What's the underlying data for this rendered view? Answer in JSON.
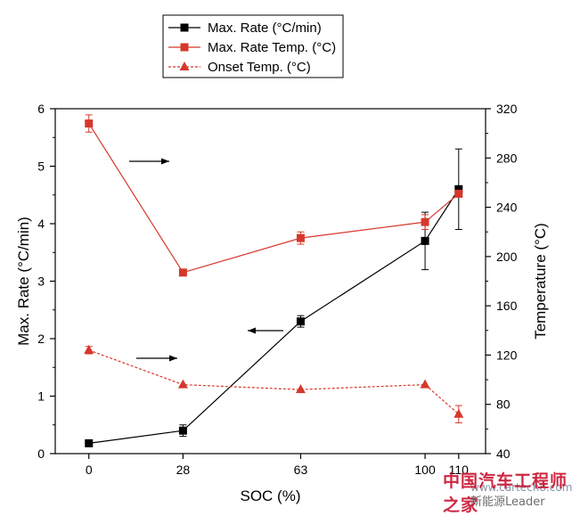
{
  "chart_data": {
    "type": "line",
    "x": [
      0,
      28,
      63,
      100,
      110
    ],
    "x_tick_labels": [
      "0",
      "28",
      "63",
      "100",
      "110"
    ],
    "xlabel": "SOC (%)",
    "ylabel_left": "Max. Rate (°C/min)",
    "ylabel_right": "Temperature (°C)",
    "ylim_left": [
      0,
      6
    ],
    "yticks_left": [
      "0",
      "1",
      "2",
      "3",
      "4",
      "5",
      "6"
    ],
    "ylim_right": [
      40,
      320
    ],
    "yticks_right": [
      "40",
      "80",
      "120",
      "160",
      "200",
      "240",
      "280",
      "320"
    ],
    "grid": false,
    "legend_position": "top-left",
    "series": [
      {
        "name": "Max. Rate (°C/min)",
        "axis": "left",
        "color": "#000000",
        "marker": "square",
        "line": "solid",
        "values": [
          0.18,
          0.4,
          2.3,
          3.7,
          4.6
        ],
        "errors": [
          0,
          0.1,
          0.1,
          0.5,
          0.7
        ]
      },
      {
        "name": "Max. Rate Temp. (°C)",
        "axis": "right",
        "color": "#d6372c",
        "marker": "square",
        "line": "solid",
        "values": [
          308,
          187,
          215,
          228,
          251
        ],
        "errors": [
          7,
          0,
          5,
          6,
          0
        ]
      },
      {
        "name": "Onset Temp. (°C)",
        "axis": "right",
        "color": "#d6372c",
        "marker": "triangle",
        "line": "dashed",
        "values": [
          124,
          96,
          92,
          96,
          72
        ],
        "errors": [
          3,
          0,
          0,
          0,
          7
        ]
      }
    ],
    "annotations": [
      {
        "type": "arrow",
        "direction": "right",
        "points_to": "right axis"
      },
      {
        "type": "arrow",
        "direction": "left",
        "points_to": "left axis"
      },
      {
        "type": "arrow",
        "direction": "right",
        "points_to": "right axis"
      }
    ]
  },
  "watermark": {
    "text_cn": "中国汽车工程师之家",
    "sub": "新能源Leader",
    "url": "www.cartech8.com"
  }
}
